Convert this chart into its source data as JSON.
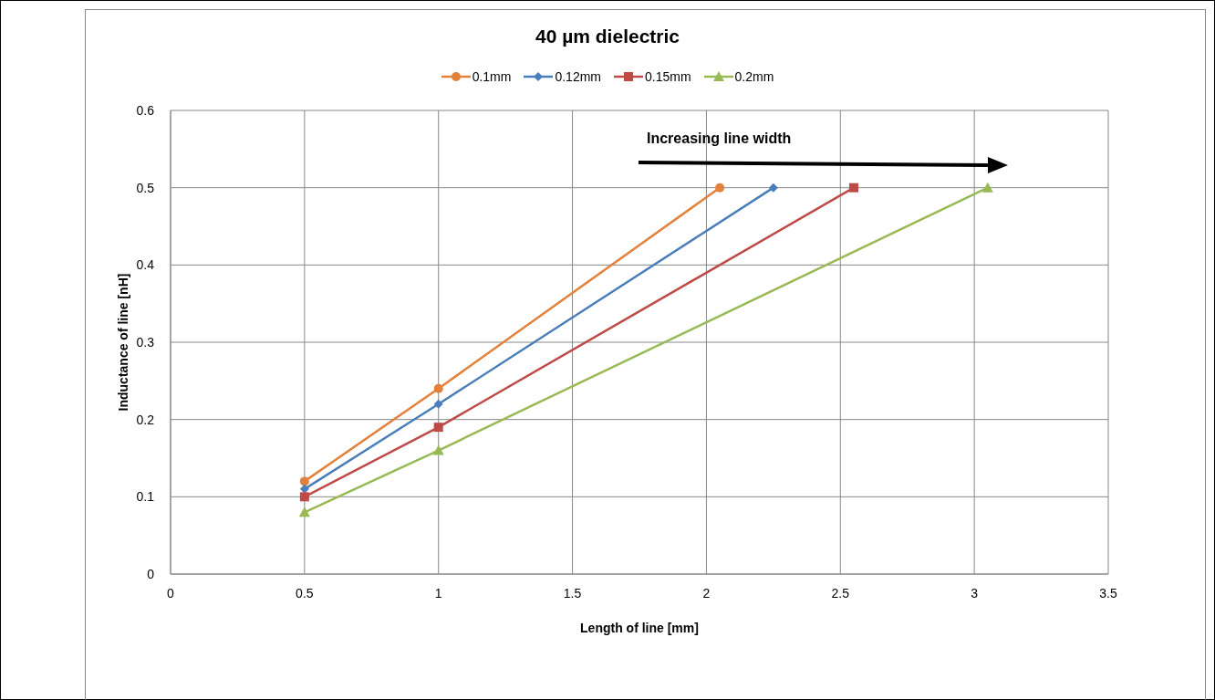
{
  "chart_data": {
    "type": "line",
    "title": "40 µm dielectric",
    "xlabel": "Length of line [mm]",
    "ylabel": "Inductance of line [nH]",
    "annotations": [
      "Increasing line width"
    ],
    "series": [
      {
        "name": "0.1mm",
        "color": "#e3803a",
        "marker": "circle",
        "x": [
          0.5,
          1,
          2.05
        ],
        "values": [
          0.12,
          0.24,
          0.5
        ]
      },
      {
        "name": "0.12mm",
        "color": "#4a7ebb",
        "marker": "diamond",
        "x": [
          0.5,
          1,
          2.25
        ],
        "values": [
          0.11,
          0.22,
          0.5
        ]
      },
      {
        "name": "0.15mm",
        "color": "#be4b48",
        "marker": "square",
        "x": [
          0.5,
          1,
          2.55
        ],
        "values": [
          0.1,
          0.19,
          0.5
        ]
      },
      {
        "name": "0.2mm",
        "color": "#98b954",
        "marker": "triangle",
        "x": [
          0.5,
          1,
          3.05
        ],
        "values": [
          0.08,
          0.16,
          0.5
        ]
      }
    ],
    "xlim": [
      0,
      3.5
    ],
    "xticks": [
      0,
      0.5,
      1,
      1.5,
      2,
      2.5,
      3,
      3.5
    ],
    "ylim": [
      0,
      0.6
    ],
    "yticks": [
      0,
      0.1,
      0.2,
      0.3,
      0.4,
      0.5,
      0.6
    ],
    "grid": true,
    "legend": "top",
    "line_style": "solid"
  }
}
